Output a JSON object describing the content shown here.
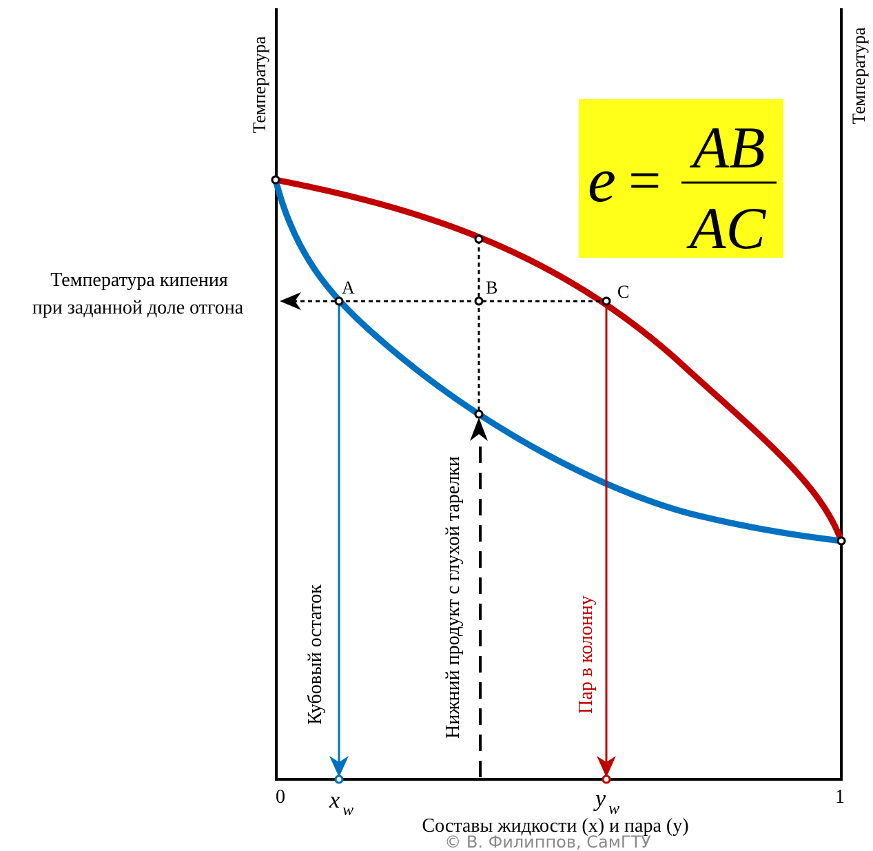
{
  "left_axis_label": "Температура",
  "right_axis_label": "Температура",
  "boiling_label_line1": "Температура кипения",
  "boiling_label_line2": "при заданной доле отгона",
  "point_a": "A",
  "point_b": "B",
  "point_c": "C",
  "formula": {
    "lhs": "e",
    "eq": "=",
    "numerator": "AB",
    "denominator": "AC",
    "background": "#ffff1a"
  },
  "bottoms_label": "Кубовый остаток",
  "tray_product_label": "Нижний продукт с глухой тарелки",
  "vapor_label": "Пар в колонну",
  "x_tick_0": "0",
  "x_tick_1": "1",
  "xw_main": "x",
  "xw_sub": "w",
  "yw_main": "y",
  "yw_sub": "w",
  "x_axis_title": "Составы жидкости (x) и пара (y)",
  "copyright": "© В. Филиппов, СамГТУ",
  "colors": {
    "liquid_curve": "#0070c0",
    "vapor_curve": "#c00000",
    "axis": "#000000"
  }
}
